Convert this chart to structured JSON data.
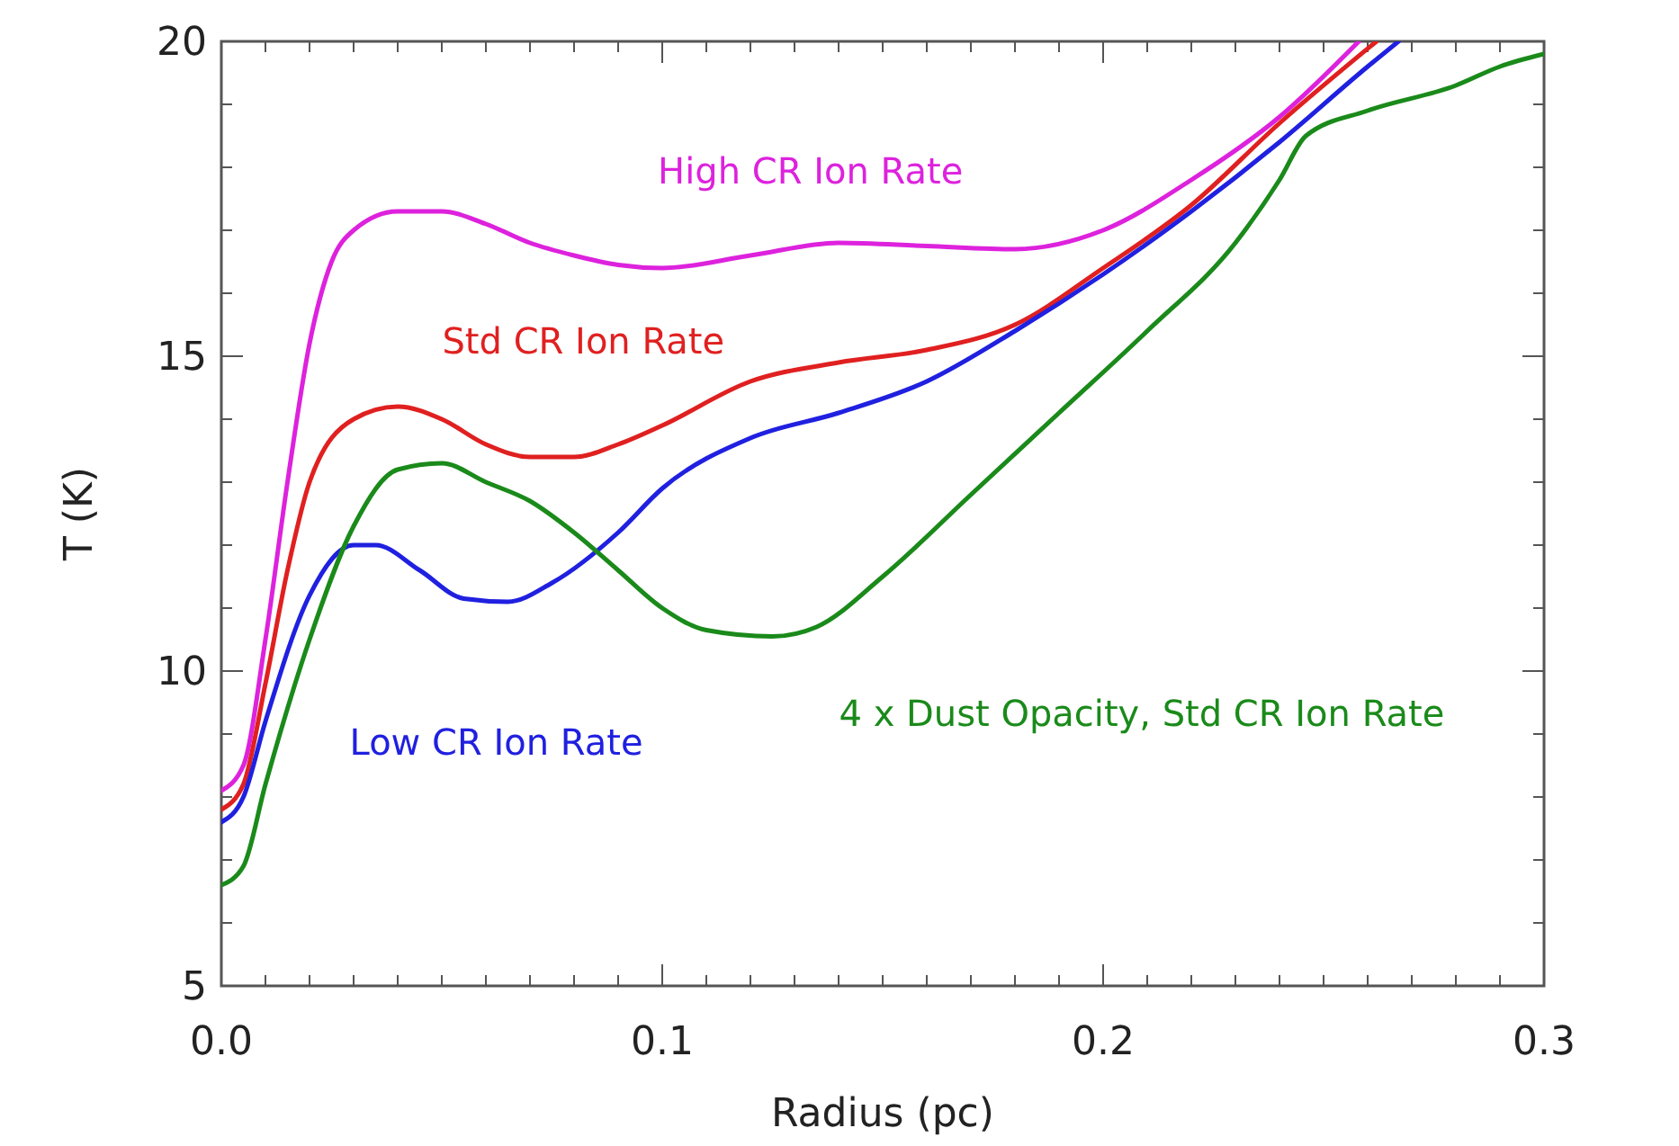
{
  "chart_data": {
    "type": "line",
    "xlabel": "Radius (pc)",
    "ylabel": "T (K)",
    "xlim": [
      0,
      0.3
    ],
    "ylim": [
      5,
      20
    ],
    "xticks": [
      {
        "value": 0,
        "label": "0.0"
      },
      {
        "value": 0.01,
        "label": null
      },
      {
        "value": 0.02,
        "label": null
      },
      {
        "value": 0.03,
        "label": null
      },
      {
        "value": 0.04,
        "label": null
      },
      {
        "value": 0.05,
        "label": null
      },
      {
        "value": 0.06,
        "label": null
      },
      {
        "value": 0.07,
        "label": null
      },
      {
        "value": 0.08,
        "label": null
      },
      {
        "value": 0.09,
        "label": null
      },
      0.1,
      {
        "value": 0.11,
        "label": null
      },
      {
        "value": 0.12,
        "label": null
      },
      {
        "value": 0.13,
        "label": null
      },
      {
        "value": 0.14,
        "label": null
      },
      {
        "value": 0.15,
        "label": null
      },
      {
        "value": 0.16,
        "label": null
      },
      {
        "value": 0.17,
        "label": null
      },
      {
        "value": 0.18,
        "label": null
      },
      {
        "value": 0.19,
        "label": null
      },
      0.2,
      {
        "value": 0.21,
        "label": null
      },
      {
        "value": 0.22,
        "label": null
      },
      {
        "value": 0.23,
        "label": null
      },
      {
        "value": 0.24,
        "label": null
      },
      {
        "value": 0.25,
        "label": null
      },
      {
        "value": 0.26,
        "label": null
      },
      {
        "value": 0.27,
        "label": null
      },
      {
        "value": 0.28,
        "label": null
      },
      {
        "value": 0.29,
        "label": null
      },
      0.3
    ],
    "yticks": [
      5,
      {
        "value": 6,
        "label": null
      },
      {
        "value": 7,
        "label": null
      },
      {
        "value": 8,
        "label": null
      },
      {
        "value": 9,
        "label": null
      },
      10,
      {
        "value": 11,
        "label": null
      },
      {
        "value": 12,
        "label": null
      },
      {
        "value": 13,
        "label": null
      },
      {
        "value": 14,
        "label": null
      },
      15,
      {
        "value": 16,
        "label": null
      },
      {
        "value": 17,
        "label": null
      },
      {
        "value": 18,
        "label": null
      },
      {
        "value": 19,
        "label": null
      },
      20
    ],
    "grid": false,
    "legend": false,
    "marker": "none",
    "line_style": "solid",
    "series": [
      {
        "name": "High CR Ion Rate",
        "color": "#dd22dd",
        "x": [
          0,
          0.005,
          0.01,
          0.015,
          0.02,
          0.025,
          0.03,
          0.04,
          0.05,
          0.06,
          0.07,
          0.08,
          0.09,
          0.1,
          0.12,
          0.14,
          0.16,
          0.18,
          0.2,
          0.22,
          0.24,
          0.258
        ],
        "values": [
          8.1,
          8.5,
          10.5,
          13,
          15.2,
          16.5,
          17,
          17.3,
          17.3,
          17.1,
          16.8,
          16.6,
          16.45,
          16.4,
          16.6,
          16.8,
          16.75,
          16.7,
          17,
          17.8,
          18.8,
          20
        ]
      },
      {
        "name": "Std CR Ion Rate",
        "color": "#e02020",
        "x": [
          0,
          0.005,
          0.01,
          0.015,
          0.02,
          0.03,
          0.04,
          0.05,
          0.06,
          0.07,
          0.08,
          0.09,
          0.1,
          0.12,
          0.14,
          0.16,
          0.18,
          0.2,
          0.22,
          0.24,
          0.262
        ],
        "values": [
          7.8,
          8.2,
          9.8,
          11.6,
          13,
          14,
          14.2,
          14,
          13.6,
          13.4,
          13.4,
          13.6,
          13.9,
          14.6,
          14.9,
          15.1,
          15.5,
          16.4,
          17.4,
          18.7,
          20
        ]
      },
      {
        "name": "Low CR Ion Rate",
        "color": "#2020e0",
        "x": [
          0,
          0.005,
          0.01,
          0.02,
          0.03,
          0.035,
          0.045,
          0.055,
          0.065,
          0.075,
          0.09,
          0.1,
          0.12,
          0.14,
          0.16,
          0.18,
          0.2,
          0.22,
          0.24,
          0.26,
          0.267
        ],
        "values": [
          7.6,
          8,
          9.2,
          11.2,
          12,
          12,
          11.6,
          11.15,
          11.1,
          11.4,
          12.2,
          12.9,
          13.7,
          14.1,
          14.6,
          15.4,
          16.3,
          17.3,
          18.4,
          19.6,
          20
        ]
      },
      {
        "name": "4 x Dust Opacity, Std CR Ion Rate",
        "color": "#1a8a1a",
        "x": [
          0,
          0.005,
          0.01,
          0.02,
          0.03,
          0.04,
          0.05,
          0.06,
          0.07,
          0.08,
          0.09,
          0.1,
          0.11,
          0.125,
          0.135,
          0.15,
          0.17,
          0.19,
          0.21,
          0.23,
          0.24,
          0.246,
          0.26,
          0.28,
          0.29,
          0.3
        ],
        "values": [
          6.6,
          6.9,
          8.2,
          10.5,
          12.3,
          13.2,
          13.3,
          13,
          12.7,
          12.2,
          11.6,
          11,
          10.65,
          10.55,
          10.7,
          11.5,
          12.8,
          14.1,
          15.4,
          16.8,
          17.8,
          18.5,
          18.9,
          19.3,
          19.6,
          19.8
        ]
      }
    ]
  }
}
